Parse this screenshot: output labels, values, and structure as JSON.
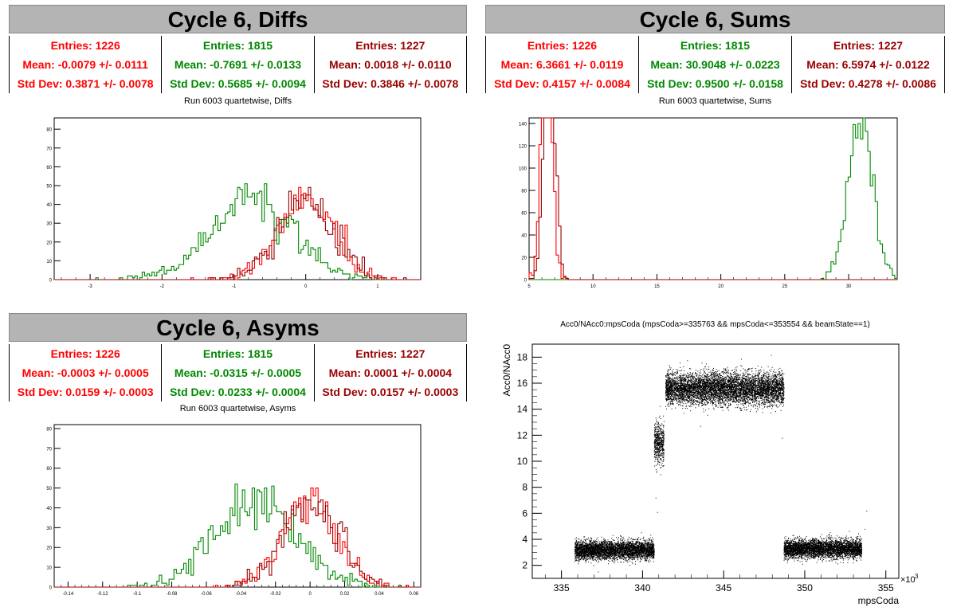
{
  "colors": {
    "s1": "#ff0000",
    "s2": "#008800",
    "s3": "#990000",
    "header_bg": "#b4b4b4"
  },
  "diffs": {
    "title": "Cycle 6, Diffs",
    "stats": [
      {
        "entries": "Entries: 1226",
        "mean": "Mean: -0.0079 +/- 0.0111",
        "std": "Std Dev: 0.3871 +/- 0.0078"
      },
      {
        "entries": "Entries: 1815",
        "mean": "Mean: -0.7691 +/- 0.0133",
        "std": "Std Dev: 0.5685 +/- 0.0094"
      },
      {
        "entries": "Entries: 1227",
        "mean": "Mean: 0.0018 +/- 0.0110",
        "std": "Std Dev: 0.3846 +/- 0.0078"
      }
    ],
    "plot_title": "Run 6003 quartetwise, Diffs"
  },
  "sums": {
    "title": "Cycle 6, Sums",
    "stats": [
      {
        "entries": "Entries: 1226",
        "mean": "Mean: 6.3661 +/- 0.0119",
        "std": "Std Dev: 0.4157 +/- 0.0084"
      },
      {
        "entries": "Entries: 1815",
        "mean": "Mean: 30.9048 +/- 0.0223",
        "std": "Std Dev: 0.9500 +/- 0.0158"
      },
      {
        "entries": "Entries: 1227",
        "mean": "Mean: 6.5974 +/- 0.0122",
        "std": "Std Dev: 0.4278 +/- 0.0086"
      }
    ],
    "plot_title": "Run 6003 quartetwise, Sums"
  },
  "asyms": {
    "title": "Cycle 6, Asyms",
    "stats": [
      {
        "entries": "Entries: 1226",
        "mean": "Mean: -0.0003 +/- 0.0005",
        "std": "Std Dev: 0.0159 +/- 0.0003"
      },
      {
        "entries": "Entries: 1815",
        "mean": "Mean: -0.0315 +/- 0.0005",
        "std": "Std Dev: 0.0233 +/- 0.0004"
      },
      {
        "entries": "Entries: 1227",
        "mean": "Mean: 0.0001 +/- 0.0004",
        "std": "Std Dev: 0.0157 +/- 0.0003"
      }
    ],
    "plot_title": "Run 6003 quartetwise, Asyms"
  },
  "scatter": {
    "title": "Acc0/NAcc0:mpsCoda (mpsCoda>=335763 && mpsCoda<=353554 && beamState==1)",
    "ylabel": "Acc0/NAcc0",
    "xlabel": "mpsCoda",
    "exponent": "×10",
    "exponent_power": "3"
  },
  "chart_data": [
    {
      "type": "bar",
      "name": "diffs",
      "xlim": [
        -3.5,
        1.6
      ],
      "ylim": [
        0,
        86
      ],
      "xticks": [
        -3,
        -2,
        -1,
        0,
        1
      ],
      "xtick_labels": [
        "-3",
        "-2",
        "-1",
        "0",
        "1"
      ],
      "yticks": [
        0,
        10,
        20,
        30,
        40,
        50,
        60,
        70,
        80
      ],
      "ytick_labels": [
        "0",
        "10",
        "20",
        "30",
        "40",
        "50",
        "60",
        "70",
        "80"
      ],
      "series": [
        {
          "mean": -0.0079,
          "std": 0.3871,
          "entries": 1226,
          "color": "#ff0000"
        },
        {
          "mean": -0.7691,
          "std": 0.5685,
          "entries": 1815,
          "color": "#008800"
        },
        {
          "mean": 0.0018,
          "std": 0.3846,
          "entries": 1227,
          "color": "#990000"
        }
      ]
    },
    {
      "type": "bar",
      "name": "sums",
      "xlim": [
        5,
        33.8
      ],
      "ylim": [
        0,
        145
      ],
      "xticks": [
        5,
        10,
        15,
        20,
        25,
        30
      ],
      "xtick_labels": [
        "5",
        "10",
        "15",
        "20",
        "25",
        "30"
      ],
      "yticks": [
        0,
        20,
        40,
        60,
        80,
        100,
        120,
        140
      ],
      "ytick_labels": [
        "0",
        "20",
        "40",
        "60",
        "80",
        "100",
        "120",
        "140"
      ],
      "series": [
        {
          "mean": 6.3661,
          "std": 0.4157,
          "entries": 1226,
          "color": "#ff0000"
        },
        {
          "mean": 30.9048,
          "std": 0.95,
          "entries": 1815,
          "color": "#008800"
        },
        {
          "mean": 6.5974,
          "std": 0.4278,
          "entries": 1227,
          "color": "#990000"
        }
      ]
    },
    {
      "type": "bar",
      "name": "asyms",
      "xlim": [
        -0.148,
        0.064
      ],
      "ylim": [
        0,
        82
      ],
      "xticks": [
        -0.14,
        -0.12,
        -0.1,
        -0.08,
        -0.06,
        -0.04,
        -0.02,
        0,
        0.02,
        0.04,
        0.06
      ],
      "xtick_labels": [
        "-0.14",
        "-0.12",
        "-0.1",
        "-0.08",
        "-0.06",
        "-0.04",
        "-0.02",
        "0",
        "0.02",
        "0.04",
        "0.06"
      ],
      "yticks": [
        0,
        10,
        20,
        30,
        40,
        50,
        60,
        70,
        80
      ],
      "ytick_labels": [
        "0",
        "10",
        "20",
        "30",
        "40",
        "50",
        "60",
        "70",
        "80"
      ],
      "series": [
        {
          "mean": -0.0003,
          "std": 0.0159,
          "entries": 1226,
          "color": "#ff0000"
        },
        {
          "mean": -0.0315,
          "std": 0.0233,
          "entries": 1815,
          "color": "#008800"
        },
        {
          "mean": 0.0001,
          "std": 0.0157,
          "entries": 1227,
          "color": "#990000"
        }
      ]
    },
    {
      "type": "scatter",
      "name": "scatter",
      "xlim": [
        333.2,
        355.8
      ],
      "ylim": [
        1.0,
        19.0
      ],
      "xticks": [
        335,
        340,
        345,
        350,
        355
      ],
      "xtick_labels": [
        "335",
        "340",
        "345",
        "350",
        "355"
      ],
      "yticks": [
        2,
        4,
        6,
        8,
        10,
        12,
        14,
        16,
        18
      ],
      "ytick_labels": [
        "2",
        "4",
        "6",
        "8",
        "10",
        "12",
        "14",
        "16",
        "18"
      ],
      "clusters": [
        {
          "x": [
            335.8,
            340.7
          ],
          "y_mean": 3.2,
          "y_std": 0.35
        },
        {
          "x": [
            340.7,
            341.3
          ],
          "y_mean": 11.4,
          "y_std": 0.8
        },
        {
          "x": [
            341.4,
            348.7
          ],
          "y_mean": 15.6,
          "y_std": 0.6
        },
        {
          "x": [
            348.7,
            353.5
          ],
          "y_mean": 3.3,
          "y_std": 0.35
        }
      ]
    }
  ]
}
